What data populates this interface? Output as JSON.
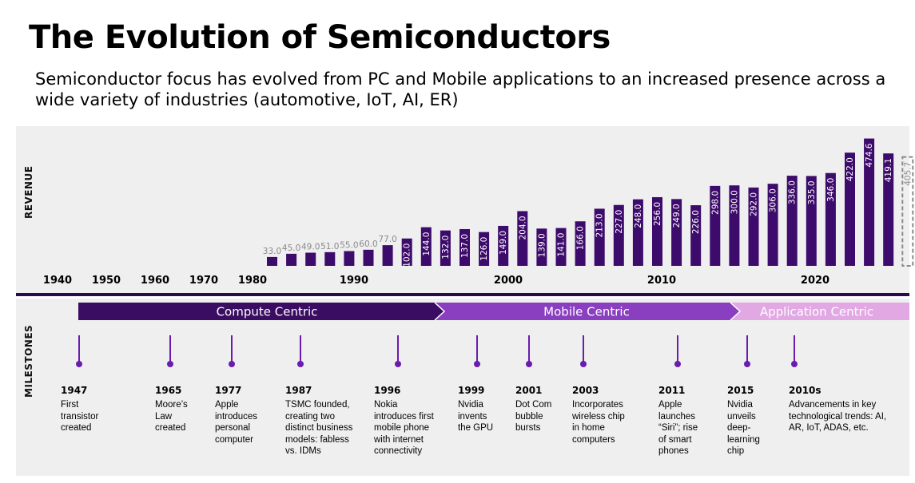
{
  "title": "The Evolution of Semiconductors",
  "subtitle": "Semiconductor focus has evolved from PC and Mobile applications to an increased presence across a wide variety of industries (automotive, IoT, AI, ER)",
  "colors": {
    "bar": "#3d0b6b",
    "bar_light_value": "#8a8a8a",
    "estimate_border": "#8a8a8a",
    "phase_compute": "#3a0d62",
    "phase_mobile": "#8a3fc0",
    "phase_application": "#e2a8e4",
    "milestone": "#6a1bb0"
  },
  "chart_data": {
    "type": "bar",
    "ylabel": "REVENUE",
    "x_ticks": [
      "1940",
      "1950",
      "1960",
      "1970",
      "1980",
      "1990",
      "2000",
      "2010",
      "2020"
    ],
    "values": [
      33.0,
      45.0,
      49.0,
      51.0,
      55.0,
      60.0,
      77.0,
      102.0,
      144.0,
      132.0,
      137.0,
      126.0,
      149.0,
      204.0,
      139.0,
      141.0,
      166.0,
      213.0,
      227.0,
      248.0,
      256.0,
      249.0,
      226.0,
      298.0,
      300.0,
      292.0,
      306.0,
      336.0,
      335.0,
      346.0,
      422.0,
      474.6,
      419.1,
      405.7
    ],
    "labels": [
      "33.0",
      "45.0",
      "49.0",
      "51.0",
      "55.0",
      "60.0",
      "77.0",
      "102.0",
      "144.0",
      "132.0",
      "137.0",
      "126.0",
      "149.0",
      "204.0",
      "139.0",
      "141.0",
      "166.0",
      "213.0",
      "227.0",
      "248.0",
      "256.0",
      "249.0",
      "226.0",
      "298.0",
      "300.0",
      "292.0",
      "306.0",
      "336.0",
      "335.0",
      "346.0",
      "422.0",
      "474.6",
      "419.1",
      "405.7"
    ],
    "estimate_last": true
  },
  "milestones_label": "MILESTONES",
  "phases": [
    {
      "label": "Compute Centric"
    },
    {
      "label": "Mobile Centric"
    },
    {
      "label": "Application Centric"
    }
  ],
  "milestones": [
    {
      "year": "1947",
      "text": [
        "First",
        "transistor",
        "created"
      ]
    },
    {
      "year": "1965",
      "text": [
        "Moore’s",
        "Law",
        "created"
      ]
    },
    {
      "year": "1977",
      "text": [
        "Apple",
        "introduces",
        "personal",
        "computer"
      ]
    },
    {
      "year": "1987",
      "text": [
        "TSMC founded,",
        "creating two",
        "distinct business",
        "models: fabless",
        "vs. IDMs"
      ]
    },
    {
      "year": "1996",
      "text": [
        "Nokia",
        "introduces first",
        "mobile phone",
        "with internet",
        "connectivity"
      ]
    },
    {
      "year": "1999",
      "text": [
        "Nvidia",
        "invents",
        "the GPU"
      ]
    },
    {
      "year": "2001",
      "text": [
        "Dot Com",
        "bubble",
        "bursts"
      ]
    },
    {
      "year": "2003",
      "text": [
        "Incorporates",
        "wireless chip",
        "in home",
        "computers"
      ]
    },
    {
      "year": "2011",
      "text": [
        "Apple",
        "launches",
        "“Siri”; rise",
        "of smart",
        "phones"
      ]
    },
    {
      "year": "2015",
      "text": [
        "Nvidia",
        "unveils",
        "deep-",
        "learning",
        "chip"
      ]
    },
    {
      "year": "2010s",
      "text": [
        "Advancements in key",
        "technological trends: AI,",
        "AR, IoT, ADAS, etc."
      ]
    }
  ]
}
